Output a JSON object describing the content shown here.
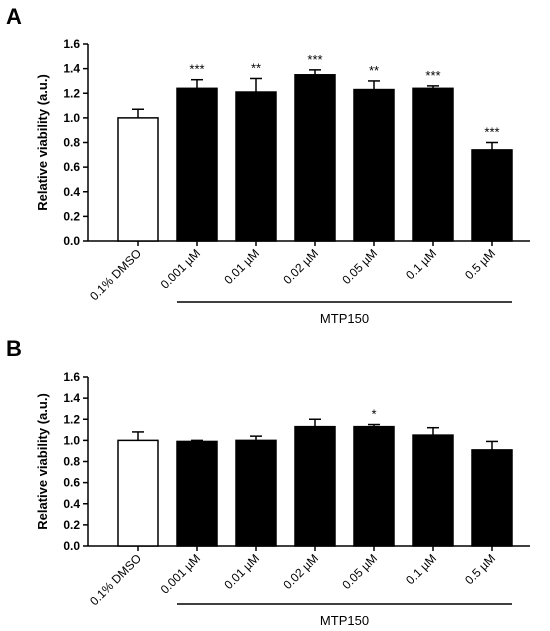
{
  "chart_data": [
    {
      "panel": "A",
      "type": "bar",
      "categories": [
        "0.1% DMSO",
        "0.001 µM",
        "0.01 µM",
        "0.02 µM",
        "0.05 µM",
        "0.1 µM",
        "0.5 µM"
      ],
      "values": [
        1.0,
        1.24,
        1.21,
        1.35,
        1.23,
        1.24,
        0.74
      ],
      "errors": [
        0.07,
        0.07,
        0.11,
        0.04,
        0.07,
        0.02,
        0.06
      ],
      "significance": [
        "",
        "***",
        "**",
        "***",
        "**",
        "***",
        "***"
      ],
      "bar_colors": [
        "#ffffff",
        "#000000",
        "#000000",
        "#000000",
        "#000000",
        "#000000",
        "#000000"
      ],
      "ylabel": "Relative viability (a.u.)",
      "yticks": [
        "0.0",
        "0.2",
        "0.4",
        "0.6",
        "0.8",
        "1.0",
        "1.2",
        "1.4",
        "1.6"
      ],
      "ylim": [
        0,
        1.6
      ],
      "group_label": "MTP150",
      "grid": false
    },
    {
      "panel": "B",
      "type": "bar",
      "categories": [
        "0.1% DMSO",
        "0.001 µM",
        "0.01 µM",
        "0.02 µM",
        "0.05 µM",
        "0.1 µM",
        "0.5 µM"
      ],
      "values": [
        1.0,
        0.99,
        1.0,
        1.13,
        1.13,
        1.05,
        0.91
      ],
      "errors": [
        0.08,
        0.01,
        0.04,
        0.07,
        0.02,
        0.07,
        0.08
      ],
      "significance": [
        "",
        "",
        "",
        "",
        "*",
        "",
        ""
      ],
      "bar_colors": [
        "#ffffff",
        "#000000",
        "#000000",
        "#000000",
        "#000000",
        "#000000",
        "#000000"
      ],
      "ylabel": "Relative viability (a.u.)",
      "yticks": [
        "0.0",
        "0.2",
        "0.4",
        "0.6",
        "0.8",
        "1.0",
        "1.2",
        "1.4",
        "1.6"
      ],
      "ylim": [
        0,
        1.6
      ],
      "group_label": "MTP150",
      "grid": false
    }
  ]
}
